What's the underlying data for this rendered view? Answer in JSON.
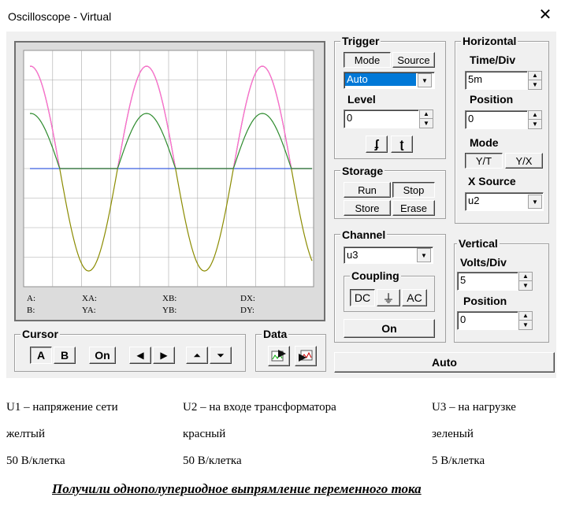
{
  "window": {
    "title": "Oscilloscope - Virtual"
  },
  "trigger": {
    "title": "Trigger",
    "mode_label": "Mode",
    "source_label": "Source",
    "mode_value": "Auto",
    "level_label": "Level",
    "level_value": "0",
    "edge_rising": "ʄ",
    "edge_falling": "ʈ"
  },
  "horizontal": {
    "title": "Horizontal",
    "timediv_label": "Time/Div",
    "timediv_value": "5m",
    "position_label": "Position",
    "position_value": "0",
    "mode_label": "Mode",
    "yt_label": "Y/T",
    "yx_label": "Y/X",
    "xsource_label": "X Source",
    "xsource_value": "u2"
  },
  "storage": {
    "title": "Storage",
    "run": "Run",
    "stop": "Stop",
    "store": "Store",
    "erase": "Erase"
  },
  "channel": {
    "title": "Channel",
    "value": "u3",
    "coupling_title": "Coupling",
    "dc": "DC",
    "gnd": "⏚",
    "ac": "AC",
    "on": "On"
  },
  "vertical": {
    "title": "Vertical",
    "voltsdiv_label": "Volts/Div",
    "voltsdiv_value": "5",
    "position_label": "Position",
    "position_value": "0"
  },
  "auto_button": "Auto",
  "cursor": {
    "title": "Cursor",
    "a": "A",
    "b": "B",
    "on": "On"
  },
  "data": {
    "title": "Data"
  },
  "readouts": {
    "a": "A:",
    "b": "B:",
    "xa": "XA:",
    "ya": "YA:",
    "xb": "XB:",
    "yb": "YB:",
    "dx": "DX:",
    "dy": "DY:"
  },
  "colors": {
    "magenta": "#ff66dd",
    "green": "#2e8b2e",
    "olive": "#8b8b00",
    "blue": "#3a5fe0",
    "grid": "#a8a8a8"
  },
  "caption": {
    "col1": [
      "U1 – напряжение сети",
      "желтый",
      "50 В/клетка"
    ],
    "col2": [
      "U2 – на входе трансформатора",
      "красный",
      "50 В/клетка"
    ],
    "col3": [
      "U3 – на нагрузке",
      "зеленый",
      "5 В/клетка"
    ],
    "summary": "Получили однополупериодное выпрямление переменного тока"
  }
}
